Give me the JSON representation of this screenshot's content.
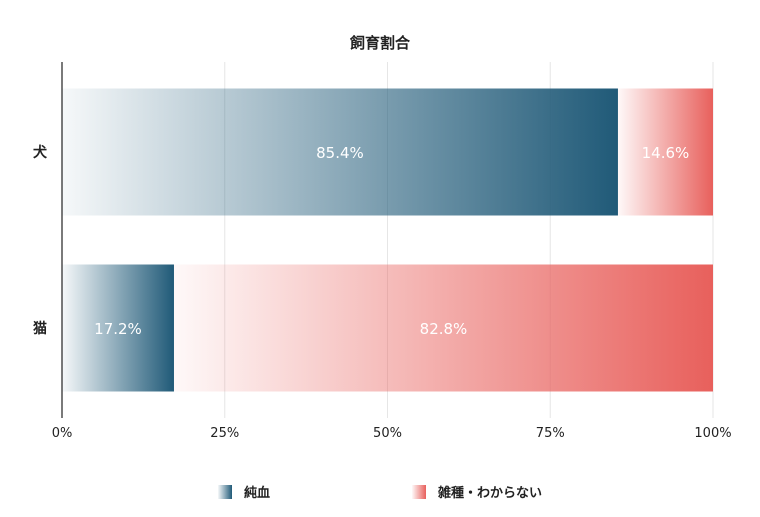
{
  "chart_data": {
    "type": "bar",
    "orientation": "horizontal",
    "stacked": true,
    "title": "飼育割合",
    "categories": [
      "犬",
      "猫"
    ],
    "series": [
      {
        "name": "純血",
        "values": [
          85.4,
          17.2
        ],
        "color": "#205a78"
      },
      {
        "name": "雑種・わからない",
        "values": [
          14.6,
          82.8
        ],
        "color": "#e8605c"
      }
    ],
    "data_labels": [
      [
        "85.4%",
        "14.6%"
      ],
      [
        "17.2%",
        "82.8%"
      ]
    ],
    "x_ticks": [
      0,
      25,
      50,
      75,
      100
    ],
    "x_tick_labels": [
      "0%",
      "25%",
      "50%",
      "75%",
      "100%"
    ],
    "xlim": [
      0,
      100
    ],
    "xlabel": "",
    "ylabel": "",
    "grid": true,
    "legend_position": "bottom"
  }
}
